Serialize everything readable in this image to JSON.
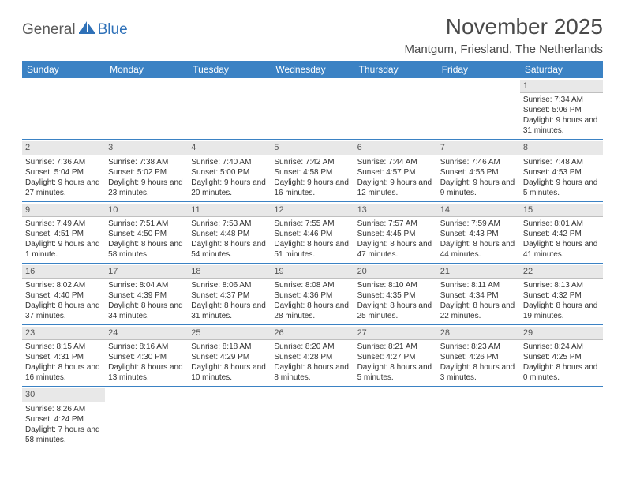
{
  "logo": {
    "general": "General",
    "blue": "Blue"
  },
  "title": "November 2025",
  "location": "Mantgum, Friesland, The Netherlands",
  "colors": {
    "header_bg": "#3b82c4",
    "header_text": "#ffffff",
    "daynum_bg": "#e8e8e8",
    "border": "#3b82c4",
    "logo_blue": "#2f71b8",
    "logo_gray": "#5a5a5a"
  },
  "day_names": [
    "Sunday",
    "Monday",
    "Tuesday",
    "Wednesday",
    "Thursday",
    "Friday",
    "Saturday"
  ],
  "weeks": [
    [
      null,
      null,
      null,
      null,
      null,
      null,
      {
        "n": "1",
        "sr": "Sunrise: 7:34 AM",
        "ss": "Sunset: 5:06 PM",
        "dl": "Daylight: 9 hours and 31 minutes."
      }
    ],
    [
      {
        "n": "2",
        "sr": "Sunrise: 7:36 AM",
        "ss": "Sunset: 5:04 PM",
        "dl": "Daylight: 9 hours and 27 minutes."
      },
      {
        "n": "3",
        "sr": "Sunrise: 7:38 AM",
        "ss": "Sunset: 5:02 PM",
        "dl": "Daylight: 9 hours and 23 minutes."
      },
      {
        "n": "4",
        "sr": "Sunrise: 7:40 AM",
        "ss": "Sunset: 5:00 PM",
        "dl": "Daylight: 9 hours and 20 minutes."
      },
      {
        "n": "5",
        "sr": "Sunrise: 7:42 AM",
        "ss": "Sunset: 4:58 PM",
        "dl": "Daylight: 9 hours and 16 minutes."
      },
      {
        "n": "6",
        "sr": "Sunrise: 7:44 AM",
        "ss": "Sunset: 4:57 PM",
        "dl": "Daylight: 9 hours and 12 minutes."
      },
      {
        "n": "7",
        "sr": "Sunrise: 7:46 AM",
        "ss": "Sunset: 4:55 PM",
        "dl": "Daylight: 9 hours and 9 minutes."
      },
      {
        "n": "8",
        "sr": "Sunrise: 7:48 AM",
        "ss": "Sunset: 4:53 PM",
        "dl": "Daylight: 9 hours and 5 minutes."
      }
    ],
    [
      {
        "n": "9",
        "sr": "Sunrise: 7:49 AM",
        "ss": "Sunset: 4:51 PM",
        "dl": "Daylight: 9 hours and 1 minute."
      },
      {
        "n": "10",
        "sr": "Sunrise: 7:51 AM",
        "ss": "Sunset: 4:50 PM",
        "dl": "Daylight: 8 hours and 58 minutes."
      },
      {
        "n": "11",
        "sr": "Sunrise: 7:53 AM",
        "ss": "Sunset: 4:48 PM",
        "dl": "Daylight: 8 hours and 54 minutes."
      },
      {
        "n": "12",
        "sr": "Sunrise: 7:55 AM",
        "ss": "Sunset: 4:46 PM",
        "dl": "Daylight: 8 hours and 51 minutes."
      },
      {
        "n": "13",
        "sr": "Sunrise: 7:57 AM",
        "ss": "Sunset: 4:45 PM",
        "dl": "Daylight: 8 hours and 47 minutes."
      },
      {
        "n": "14",
        "sr": "Sunrise: 7:59 AM",
        "ss": "Sunset: 4:43 PM",
        "dl": "Daylight: 8 hours and 44 minutes."
      },
      {
        "n": "15",
        "sr": "Sunrise: 8:01 AM",
        "ss": "Sunset: 4:42 PM",
        "dl": "Daylight: 8 hours and 41 minutes."
      }
    ],
    [
      {
        "n": "16",
        "sr": "Sunrise: 8:02 AM",
        "ss": "Sunset: 4:40 PM",
        "dl": "Daylight: 8 hours and 37 minutes."
      },
      {
        "n": "17",
        "sr": "Sunrise: 8:04 AM",
        "ss": "Sunset: 4:39 PM",
        "dl": "Daylight: 8 hours and 34 minutes."
      },
      {
        "n": "18",
        "sr": "Sunrise: 8:06 AM",
        "ss": "Sunset: 4:37 PM",
        "dl": "Daylight: 8 hours and 31 minutes."
      },
      {
        "n": "19",
        "sr": "Sunrise: 8:08 AM",
        "ss": "Sunset: 4:36 PM",
        "dl": "Daylight: 8 hours and 28 minutes."
      },
      {
        "n": "20",
        "sr": "Sunrise: 8:10 AM",
        "ss": "Sunset: 4:35 PM",
        "dl": "Daylight: 8 hours and 25 minutes."
      },
      {
        "n": "21",
        "sr": "Sunrise: 8:11 AM",
        "ss": "Sunset: 4:34 PM",
        "dl": "Daylight: 8 hours and 22 minutes."
      },
      {
        "n": "22",
        "sr": "Sunrise: 8:13 AM",
        "ss": "Sunset: 4:32 PM",
        "dl": "Daylight: 8 hours and 19 minutes."
      }
    ],
    [
      {
        "n": "23",
        "sr": "Sunrise: 8:15 AM",
        "ss": "Sunset: 4:31 PM",
        "dl": "Daylight: 8 hours and 16 minutes."
      },
      {
        "n": "24",
        "sr": "Sunrise: 8:16 AM",
        "ss": "Sunset: 4:30 PM",
        "dl": "Daylight: 8 hours and 13 minutes."
      },
      {
        "n": "25",
        "sr": "Sunrise: 8:18 AM",
        "ss": "Sunset: 4:29 PM",
        "dl": "Daylight: 8 hours and 10 minutes."
      },
      {
        "n": "26",
        "sr": "Sunrise: 8:20 AM",
        "ss": "Sunset: 4:28 PM",
        "dl": "Daylight: 8 hours and 8 minutes."
      },
      {
        "n": "27",
        "sr": "Sunrise: 8:21 AM",
        "ss": "Sunset: 4:27 PM",
        "dl": "Daylight: 8 hours and 5 minutes."
      },
      {
        "n": "28",
        "sr": "Sunrise: 8:23 AM",
        "ss": "Sunset: 4:26 PM",
        "dl": "Daylight: 8 hours and 3 minutes."
      },
      {
        "n": "29",
        "sr": "Sunrise: 8:24 AM",
        "ss": "Sunset: 4:25 PM",
        "dl": "Daylight: 8 hours and 0 minutes."
      }
    ],
    [
      {
        "n": "30",
        "sr": "Sunrise: 8:26 AM",
        "ss": "Sunset: 4:24 PM",
        "dl": "Daylight: 7 hours and 58 minutes."
      },
      null,
      null,
      null,
      null,
      null,
      null
    ]
  ]
}
